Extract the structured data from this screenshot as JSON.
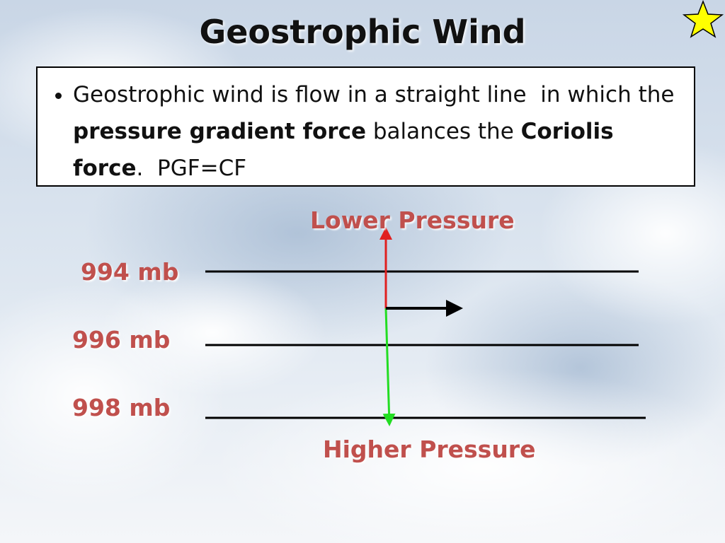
{
  "title": "Geostrophic Wind",
  "bullet": {
    "segments": [
      {
        "text": "Geostrophic wind is flow in a straight line  in which the ",
        "bold": false
      },
      {
        "text": "pressure gradient force",
        "bold": true
      },
      {
        "text": " balances the ",
        "bold": false
      },
      {
        "text": "Coriolis force",
        "bold": true
      },
      {
        "text": ".  PGF=CF",
        "bold": false
      }
    ]
  },
  "diagram": {
    "top_label": "Lower Pressure",
    "bottom_label": "Higher Pressure",
    "isobars": [
      {
        "label": "994 mb"
      },
      {
        "label": "996 mb"
      },
      {
        "label": "998 mb"
      }
    ]
  }
}
